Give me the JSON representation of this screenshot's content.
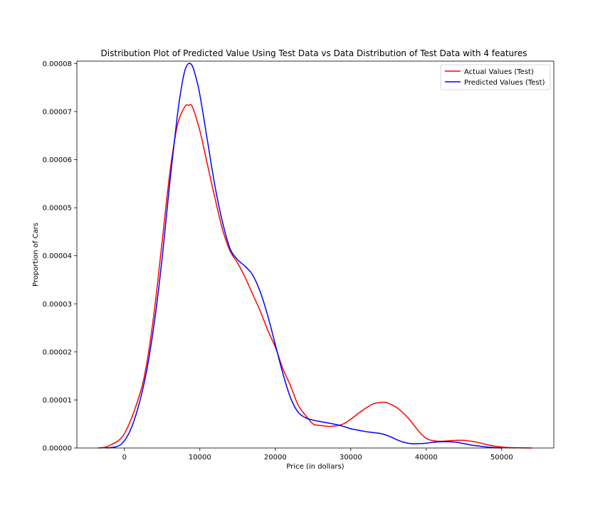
{
  "chart_data": {
    "type": "line",
    "title": "Distribution Plot of Predicted Value Using Test Data vs Data Distribution of Test Data with 4 features",
    "xlabel": "Price (in dollars)",
    "ylabel": "Proportion of Cars",
    "xlim": [
      -6300,
      56900
    ],
    "ylim": [
      0,
      8.05e-05
    ],
    "xticks": [
      0,
      10000,
      20000,
      30000,
      40000,
      50000
    ],
    "xtick_labels": [
      "0",
      "10000",
      "20000",
      "30000",
      "40000",
      "50000"
    ],
    "yticks": [
      0,
      1e-05,
      2e-05,
      3e-05,
      4e-05,
      5e-05,
      6e-05,
      7e-05,
      8e-05
    ],
    "ytick_labels": [
      "0.00000",
      "0.00001",
      "0.00002",
      "0.00003",
      "0.00004",
      "0.00005",
      "0.00006",
      "0.00007",
      "0.00008"
    ],
    "grid": false,
    "legend": "top-right",
    "series": [
      {
        "name": "Actual Values (Test)",
        "color": "#ff0000",
        "x": [
          -3500,
          -2000,
          0,
          2000,
          3000,
          4000,
          5000,
          6000,
          7000,
          8000,
          8500,
          9000,
          10000,
          11000,
          12000,
          13000,
          14000,
          15000,
          16000,
          17000,
          18000,
          19000,
          20000,
          21000,
          22000,
          23000,
          24000,
          25000,
          26000,
          27000,
          28000,
          29000,
          30000,
          31000,
          32000,
          33000,
          34000,
          34500,
          35000,
          36000,
          37000,
          38000,
          39000,
          40000,
          41000,
          42000,
          43000,
          44000,
          45000,
          46000,
          47000,
          48000,
          49000,
          50000,
          51000,
          52000,
          53000,
          54000
        ],
        "y": [
          0,
          5e-07,
          3e-06,
          1.1e-05,
          1.8e-05,
          2.9e-05,
          4.3e-05,
          5.7e-05,
          6.7e-05,
          7.1e-05,
          7.13e-05,
          7.1e-05,
          6.6e-05,
          5.9e-05,
          5.2e-05,
          4.55e-05,
          4.1e-05,
          3.85e-05,
          3.55e-05,
          3.2e-05,
          2.85e-05,
          2.45e-05,
          2.1e-05,
          1.65e-05,
          1.3e-05,
          9e-06,
          6.8e-06,
          5e-06,
          4.7e-06,
          4.5e-06,
          4.6e-06,
          5e-06,
          6e-06,
          7.2e-06,
          8.3e-06,
          9.2e-06,
          9.5e-06,
          9.5e-06,
          9.3e-06,
          8.5e-06,
          7.2e-06,
          5.5e-06,
          3.5e-06,
          2e-06,
          1.5e-06,
          1.4e-06,
          1.5e-06,
          1.6e-06,
          1.6e-06,
          1.4e-06,
          1.1e-06,
          7e-07,
          4e-07,
          2e-07,
          1e-07,
          5e-08,
          2e-08,
          0
        ]
      },
      {
        "name": "Predicted Values (Test)",
        "color": "#0000ff",
        "x": [
          -2500,
          -1000,
          0,
          1000,
          2000,
          3000,
          4000,
          5000,
          6000,
          7000,
          7500,
          8000,
          8500,
          9000,
          9500,
          10000,
          11000,
          12000,
          13000,
          14000,
          15000,
          16000,
          17000,
          18000,
          19000,
          20000,
          21000,
          22000,
          23000,
          24000,
          25000,
          26000,
          27000,
          28000,
          29000,
          30000,
          31000,
          32000,
          33000,
          34000,
          35000,
          36000,
          37000,
          38000,
          39000,
          40000,
          41000,
          42000,
          43000,
          44000,
          45000,
          46000,
          47000,
          48000,
          49000,
          50000
        ],
        "y": [
          0,
          3e-07,
          1.5e-06,
          4.5e-06,
          9.5e-06,
          1.65e-05,
          2.65e-05,
          3.95e-05,
          5.5e-05,
          6.9e-05,
          7.45e-05,
          7.85e-05,
          8e-05,
          7.95e-05,
          7.7e-05,
          7.35e-05,
          6.4e-05,
          5.45e-05,
          4.7e-05,
          4.15e-05,
          3.92e-05,
          3.78e-05,
          3.6e-05,
          3.25e-05,
          2.75e-05,
          2.15e-05,
          1.55e-05,
          1.05e-05,
          7.5e-06,
          6.3e-06,
          5.8e-06,
          5.5e-06,
          5.2e-06,
          4.9e-06,
          4.5e-06,
          4e-06,
          3.7e-06,
          3.4e-06,
          3.2e-06,
          3e-06,
          2.5e-06,
          1.8e-06,
          1.2e-06,
          9e-07,
          9e-07,
          1e-06,
          1.2e-06,
          1.3e-06,
          1.3e-06,
          1.2e-06,
          9e-07,
          6e-07,
          4e-07,
          2e-07,
          1e-07,
          0
        ]
      }
    ]
  }
}
